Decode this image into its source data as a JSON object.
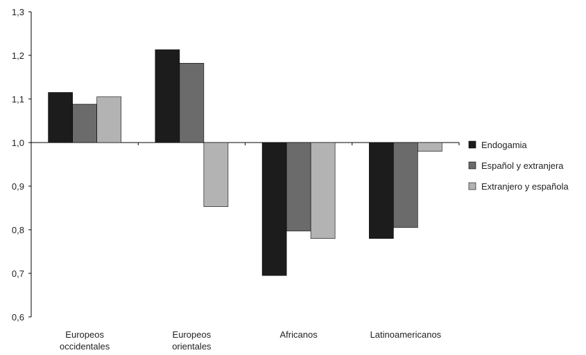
{
  "chart_data": {
    "type": "bar",
    "baseline": 1.0,
    "categories": [
      [
        "Europeos",
        "occidentales"
      ],
      [
        "Europeos",
        "orientales"
      ],
      [
        "Africanos"
      ],
      [
        "Latinoamericanos"
      ]
    ],
    "series": [
      {
        "name": "Endogamia",
        "color": "#1c1c1c",
        "values": [
          1.115,
          1.213,
          0.695,
          0.78
        ]
      },
      {
        "name": "Español y extranjera",
        "color": "#6b6b6b",
        "values": [
          1.088,
          1.182,
          0.797,
          0.805
        ]
      },
      {
        "name": "Extranjero y española",
        "color": "#b3b3b3",
        "values": [
          1.105,
          0.853,
          0.78,
          0.98
        ]
      }
    ],
    "ylim": [
      0.6,
      1.3
    ],
    "yticks": [
      "1,3",
      "1,2",
      "1,1",
      "1,0",
      "0,9",
      "0,8",
      "0,7",
      "0,6"
    ],
    "ytick_values": [
      1.3,
      1.2,
      1.1,
      1.0,
      0.9,
      0.8,
      0.7,
      0.6
    ],
    "legend_position": "right",
    "grid": false
  }
}
